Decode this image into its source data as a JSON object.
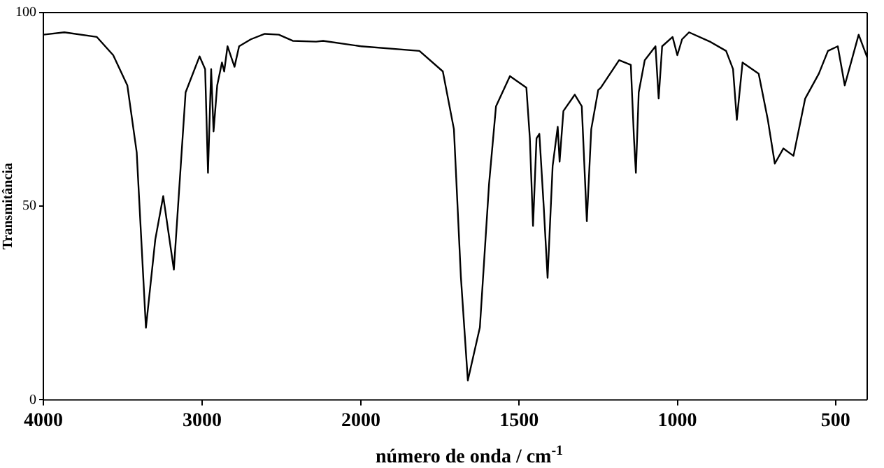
{
  "chart_data": [
    {
      "type": "line",
      "ylabel": "Transmitância",
      "xlim": [
        4000,
        2000
      ],
      "xticks": [
        4000,
        3000,
        2000
      ],
      "ylim": [
        0,
        100
      ],
      "yticks": [
        0,
        50,
        100
      ],
      "grid": false,
      "legend": false,
      "marker": "none",
      "line_style": "solid",
      "series": [
        {
          "color": "#000000",
          "x": [
            4000,
            3868,
            3663,
            3560,
            3471,
            3412,
            3354,
            3295,
            3245,
            3178,
            3104,
            3016,
            2981,
            2963,
            2943,
            2928,
            2905,
            2875,
            2861,
            2840,
            2796,
            2767,
            2693,
            2605,
            2517,
            2429,
            2282,
            2238,
            2000
          ],
          "values": [
            94.3,
            94.9,
            93.7,
            89,
            81.2,
            63.9,
            18.6,
            41.4,
            52.6,
            33.6,
            79.4,
            88.7,
            85.4,
            58.6,
            85.4,
            69.3,
            81.2,
            87.1,
            84.8,
            91.3,
            86,
            91.3,
            93.1,
            94.5,
            94.3,
            92.7,
            92.5,
            92.7,
            91.3
          ]
        }
      ]
    },
    {
      "type": "line",
      "xlabel": "número de onda / cm$^{-1}$",
      "xlim": [
        2000,
        400
      ],
      "xticks": [
        1500,
        1000,
        500
      ],
      "ylim": [
        0,
        100
      ],
      "yticks": [
        0,
        50,
        100
      ],
      "tick_labels": "x",
      "grid": false,
      "legend": false,
      "marker": "none",
      "line_style": "solid",
      "series": [
        {
          "color": "#000000",
          "x": [
            2000,
            1815,
            1741,
            1706,
            1684,
            1662,
            1624,
            1595,
            1573,
            1529,
            1477,
            1466,
            1456,
            1445,
            1436,
            1422,
            1410,
            1394,
            1378,
            1372,
            1360,
            1324,
            1302,
            1286,
            1272,
            1250,
            1242,
            1184,
            1147,
            1137,
            1131,
            1122,
            1103,
            1069,
            1059,
            1048,
            1015,
            1000,
            985,
            963,
            897,
            846,
            824,
            812,
            794,
            743,
            714,
            692,
            665,
            633,
            596,
            553,
            524,
            493,
            471,
            427,
            400
          ],
          "values": [
            91.3,
            90.1,
            84.8,
            69.9,
            31.8,
            5,
            18.7,
            55.7,
            75.8,
            83.6,
            80.6,
            67.5,
            44.9,
            67.5,
            68.7,
            49.6,
            31.5,
            60.4,
            70.5,
            61.5,
            74.6,
            78.8,
            75.8,
            46.1,
            69.9,
            80,
            80.6,
            87.7,
            86.5,
            67.5,
            58.6,
            79.4,
            87.7,
            91.3,
            77.8,
            91.3,
            93.7,
            89,
            93.1,
            94.9,
            92.5,
            90.1,
            85.4,
            72.3,
            87.1,
            84.2,
            72.3,
            61,
            64.9,
            63,
            77.8,
            84.2,
            90.1,
            91.3,
            81.2,
            94.3,
            88.4
          ]
        }
      ]
    }
  ]
}
